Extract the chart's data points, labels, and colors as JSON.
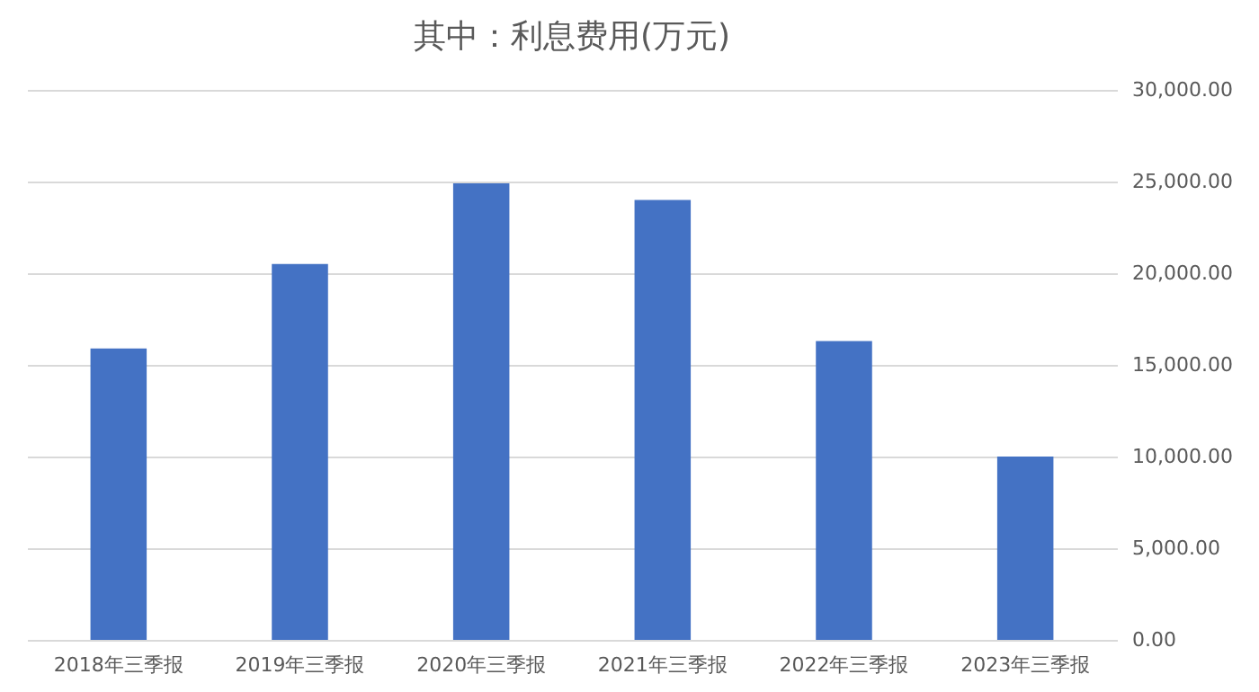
{
  "chart_data": {
    "type": "bar",
    "title": "其中：利息费用(万元)",
    "categories": [
      "2018年三季报",
      "2019年三季报",
      "2020年三季报",
      "2021年三季报",
      "2022年三季报",
      "2023年三季报"
    ],
    "values": [
      15900,
      20500,
      24900,
      24000,
      16300,
      10000
    ],
    "color": "#4472c4",
    "ylim": [
      0,
      30000
    ],
    "yticks": [
      {
        "value": 0,
        "label": "0.00"
      },
      {
        "value": 5000,
        "label": "5,000.00"
      },
      {
        "value": 10000,
        "label": "10,000.00"
      },
      {
        "value": 15000,
        "label": "15,000.00"
      },
      {
        "value": 20000,
        "label": "20,000.00"
      },
      {
        "value": 25000,
        "label": "25,000.00"
      },
      {
        "value": 30000,
        "label": "30,000.00"
      }
    ],
    "grid": "y"
  }
}
